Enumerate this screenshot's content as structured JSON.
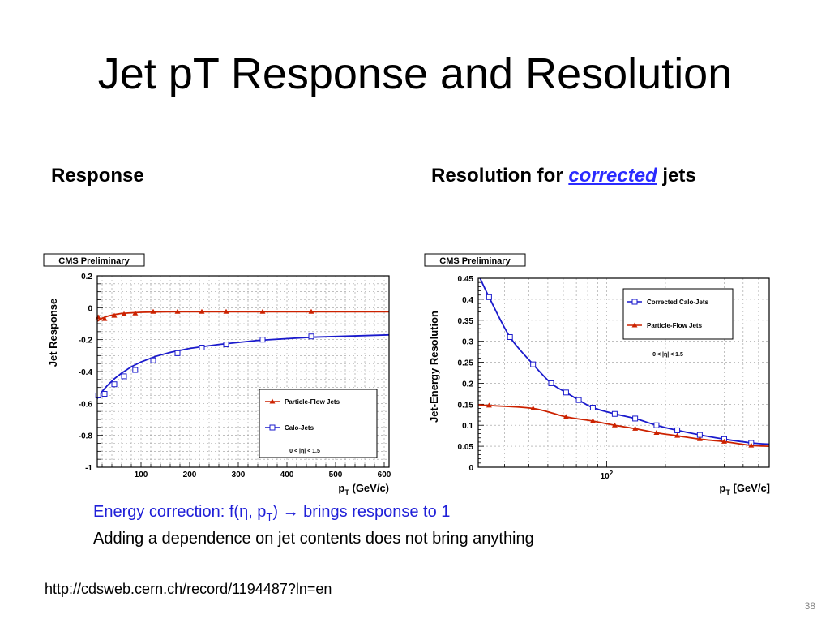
{
  "slide": {
    "title": "Jet pT Response and Resolution",
    "response_heading": "Response",
    "resolution_heading_prefix": "Resolution for ",
    "resolution_heading_link": "corrected",
    "resolution_heading_suffix": " jets",
    "note1_prefix": "Energy correction:  f(η, p",
    "note1_sub": "T",
    "note1_suffix": ") ",
    "note1_arrow": "→",
    "note1_end": " brings response to 1",
    "note2": "Adding a dependence on jet contents does not bring anything",
    "url": "http://cdsweb.cern.ch/record/1194487?ln=en",
    "page_number": "38"
  },
  "colors": {
    "pf": "#cc2200",
    "calo": "#1a1acc",
    "link": "#2b2bff",
    "note": "#2020d8"
  },
  "chart_data": [
    {
      "type": "scatter",
      "badge": "CMS Preliminary",
      "ylabel": "Jet Response",
      "xlabel_main": "p",
      "xlabel_sub": "T",
      "xlabel_unit": " (GeV/c)",
      "xlim": [
        10,
        610
      ],
      "ylim": [
        -1,
        0.2
      ],
      "xticks": [
        100,
        200,
        300,
        400,
        500,
        600
      ],
      "yticks": [
        0.2,
        0,
        -0.2,
        -0.4,
        -0.6,
        -0.8,
        -1
      ],
      "ytick_labels": [
        "0.2",
        "0",
        "-0.2",
        "-0.4",
        "-0.6",
        "-0.8",
        "-1"
      ],
      "legend_position": "bottom-right",
      "legend_note": "0 < |η| < 1.5",
      "series": [
        {
          "name": "Particle-Flow Jets",
          "marker": "triangle",
          "color": "#cc2200",
          "x": [
            12,
            25,
            45,
            65,
            88,
            125,
            175,
            225,
            275,
            350,
            450
          ],
          "y": [
            -0.06,
            -0.07,
            -0.05,
            -0.04,
            -0.035,
            -0.025,
            -0.025,
            -0.025,
            -0.025,
            -0.025,
            -0.025
          ],
          "fit_x": [
            10,
            20,
            30,
            45,
            60,
            80,
            100,
            130,
            160,
            200,
            260,
            340,
            450,
            610
          ],
          "fit_y": [
            -0.085,
            -0.066,
            -0.054,
            -0.043,
            -0.036,
            -0.032,
            -0.029,
            -0.027,
            -0.026,
            -0.025,
            -0.025,
            -0.025,
            -0.025,
            -0.025
          ]
        },
        {
          "name": "Calo-Jets",
          "marker": "open-square",
          "color": "#1a1acc",
          "x": [
            12,
            25,
            45,
            65,
            88,
            125,
            175,
            225,
            275,
            350,
            450
          ],
          "y": [
            -0.55,
            -0.54,
            -0.48,
            -0.43,
            -0.39,
            -0.33,
            -0.285,
            -0.25,
            -0.23,
            -0.2,
            -0.18
          ],
          "fit_x": [
            10,
            20,
            30,
            45,
            60,
            80,
            100,
            130,
            160,
            200,
            260,
            340,
            450,
            610
          ],
          "fit_y": [
            -0.57,
            -0.525,
            -0.49,
            -0.445,
            -0.41,
            -0.37,
            -0.34,
            -0.305,
            -0.28,
            -0.255,
            -0.23,
            -0.205,
            -0.185,
            -0.17
          ]
        }
      ]
    },
    {
      "type": "scatter",
      "badge": "CMS Preliminary",
      "ylabel": "Jet-Energy Resolution",
      "xlabel_main": "p",
      "xlabel_sub": "T",
      "xlabel_unit": " [GeV/c]",
      "xscale": "log",
      "xlim": [
        22,
        680
      ],
      "ylim": [
        0,
        0.45
      ],
      "xtick_label_base": "10",
      "xtick_label_exp": "2",
      "yticks": [
        0,
        0.05,
        0.1,
        0.15,
        0.2,
        0.25,
        0.3,
        0.35,
        0.4,
        0.45
      ],
      "ytick_labels": [
        "0",
        "0.05",
        "0.1",
        "0.15",
        "0.2",
        "0.25",
        "0.3",
        "0.35",
        "0.4",
        "0.45"
      ],
      "legend_position": "top-right",
      "legend_note": "0 < |η| < 1.5",
      "series": [
        {
          "name": "Corrected Calo-Jets",
          "marker": "open-square",
          "color": "#1a1acc",
          "x": [
            25,
            32,
            42,
            52,
            62,
            72,
            85,
            110,
            140,
            180,
            230,
            300,
            400,
            550
          ],
          "y": [
            0.405,
            0.31,
            0.245,
            0.2,
            0.178,
            0.16,
            0.142,
            0.127,
            0.116,
            0.1,
            0.088,
            0.077,
            0.067,
            0.058
          ]
        },
        {
          "name": "Particle-Flow Jets",
          "marker": "triangle",
          "color": "#cc2200",
          "x": [
            25,
            42,
            62,
            85,
            110,
            140,
            180,
            230,
            300,
            400,
            550
          ],
          "y": [
            0.147,
            0.14,
            0.12,
            0.11,
            0.1,
            0.092,
            0.082,
            0.075,
            0.067,
            0.061,
            0.052
          ]
        }
      ]
    }
  ]
}
